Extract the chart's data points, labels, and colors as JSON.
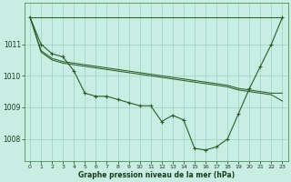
{
  "bg_color": "#c8eee4",
  "grid_color": "#9ecfbf",
  "line_color": "#2a5c2a",
  "xlim": [
    -0.5,
    23.5
  ],
  "ylim": [
    1007.3,
    1012.3
  ],
  "yticks": [
    1008,
    1009,
    1010,
    1011
  ],
  "xticks": [
    0,
    1,
    2,
    3,
    4,
    5,
    6,
    7,
    8,
    9,
    10,
    11,
    12,
    13,
    14,
    15,
    16,
    17,
    18,
    19,
    20,
    21,
    22,
    23
  ],
  "xlabel": "Graphe pression niveau de la mer (hPa)",
  "line1": [
    1011.85,
    1011.85,
    1011.85,
    1011.85,
    1011.85,
    1011.85,
    1011.85,
    1011.85,
    1011.85,
    1011.85,
    1011.85,
    1011.85,
    1011.85,
    1011.85,
    1011.85,
    1011.85,
    1011.85,
    1011.85,
    1011.85,
    1011.85,
    1011.85,
    1011.85,
    1011.85,
    1011.85
  ],
  "line2": [
    1011.85,
    1010.8,
    1010.55,
    1010.45,
    1010.4,
    1010.35,
    1010.3,
    1010.25,
    1010.2,
    1010.15,
    1010.1,
    1010.05,
    1010.0,
    1009.95,
    1009.9,
    1009.85,
    1009.8,
    1009.75,
    1009.7,
    1009.6,
    1009.55,
    1009.5,
    1009.45,
    1009.45
  ],
  "line3": [
    1011.85,
    1010.75,
    1010.5,
    1010.4,
    1010.35,
    1010.3,
    1010.25,
    1010.2,
    1010.15,
    1010.1,
    1010.05,
    1010.0,
    1009.95,
    1009.9,
    1009.85,
    1009.8,
    1009.75,
    1009.7,
    1009.65,
    1009.55,
    1009.5,
    1009.45,
    1009.4,
    1009.2
  ],
  "main_y": [
    1011.85,
    1011.0,
    1010.7,
    1010.6,
    1010.15,
    1009.45,
    1009.35,
    1009.35,
    1009.25,
    1009.15,
    1009.05,
    1009.05,
    1008.55,
    1008.75,
    1008.6,
    1007.7,
    1007.65,
    1007.75,
    1008.0,
    1008.8,
    1009.6,
    1010.3,
    1011.0,
    1011.85
  ]
}
